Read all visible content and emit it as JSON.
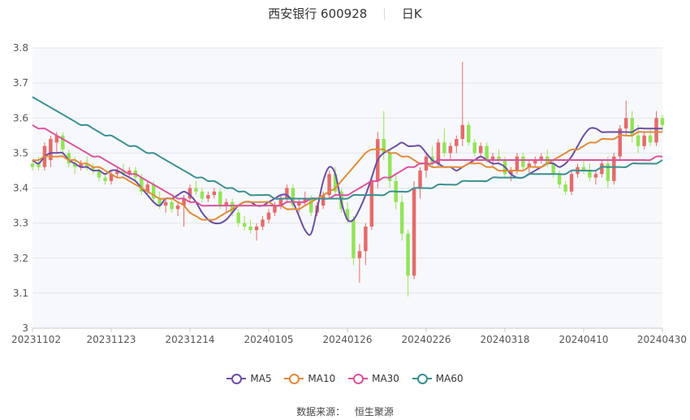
{
  "title": {
    "name": "西安银行 600928",
    "period": "日K"
  },
  "footer": {
    "label": "数据来源：",
    "source": "恒生聚源"
  },
  "chart_data": {
    "type": "candlestick",
    "ylim": [
      3.0,
      3.8
    ],
    "y_ticks": [
      3,
      3.1,
      3.2,
      3.3,
      3.4,
      3.5,
      3.6,
      3.7,
      3.8
    ],
    "x_tick_labels": [
      "20231102",
      "20231123",
      "20231214",
      "20240105",
      "20240126",
      "20240226",
      "20240318",
      "20240410",
      "20240430"
    ],
    "grid": true,
    "legend_position": "bottom",
    "colors": {
      "up": "#e46b6b",
      "down": "#93e35a"
    },
    "candles_ohlc": [
      [
        3.47,
        3.48,
        3.45,
        3.46
      ],
      [
        3.47,
        3.49,
        3.45,
        3.46
      ],
      [
        3.46,
        3.53,
        3.45,
        3.52
      ],
      [
        3.48,
        3.55,
        3.46,
        3.54
      ],
      [
        3.53,
        3.56,
        3.5,
        3.55
      ],
      [
        3.55,
        3.56,
        3.49,
        3.51
      ],
      [
        3.5,
        3.51,
        3.46,
        3.47
      ],
      [
        3.47,
        3.49,
        3.44,
        3.46
      ],
      [
        3.46,
        3.48,
        3.45,
        3.47
      ],
      [
        3.47,
        3.49,
        3.45,
        3.46
      ],
      [
        3.46,
        3.47,
        3.44,
        3.45
      ],
      [
        3.45,
        3.46,
        3.42,
        3.43
      ],
      [
        3.43,
        3.44,
        3.41,
        3.42
      ],
      [
        3.42,
        3.45,
        3.41,
        3.44
      ],
      [
        3.44,
        3.46,
        3.43,
        3.45
      ],
      [
        3.45,
        3.47,
        3.43,
        3.44
      ],
      [
        3.44,
        3.46,
        3.43,
        3.45
      ],
      [
        3.45,
        3.46,
        3.42,
        3.43
      ],
      [
        3.43,
        3.44,
        3.38,
        3.39
      ],
      [
        3.39,
        3.42,
        3.38,
        3.41
      ],
      [
        3.41,
        3.42,
        3.36,
        3.37
      ],
      [
        3.37,
        3.39,
        3.34,
        3.35
      ],
      [
        3.35,
        3.37,
        3.33,
        3.36
      ],
      [
        3.36,
        3.37,
        3.33,
        3.34
      ],
      [
        3.34,
        3.36,
        3.32,
        3.35
      ],
      [
        3.35,
        3.38,
        3.29,
        3.37
      ],
      [
        3.37,
        3.41,
        3.36,
        3.4
      ],
      [
        3.4,
        3.42,
        3.38,
        3.39
      ],
      [
        3.39,
        3.4,
        3.36,
        3.37
      ],
      [
        3.37,
        3.39,
        3.36,
        3.38
      ],
      [
        3.38,
        3.4,
        3.37,
        3.39
      ],
      [
        3.39,
        3.4,
        3.34,
        3.35
      ],
      [
        3.35,
        3.37,
        3.33,
        3.36
      ],
      [
        3.36,
        3.37,
        3.32,
        3.33
      ],
      [
        3.33,
        3.34,
        3.29,
        3.3
      ],
      [
        3.3,
        3.32,
        3.28,
        3.29
      ],
      [
        3.29,
        3.31,
        3.27,
        3.28
      ],
      [
        3.28,
        3.3,
        3.25,
        3.29
      ],
      [
        3.29,
        3.32,
        3.28,
        3.31
      ],
      [
        3.31,
        3.34,
        3.3,
        3.33
      ],
      [
        3.33,
        3.36,
        3.32,
        3.35
      ],
      [
        3.35,
        3.38,
        3.34,
        3.37
      ],
      [
        3.37,
        3.41,
        3.36,
        3.4
      ],
      [
        3.4,
        3.41,
        3.34,
        3.35
      ],
      [
        3.35,
        3.37,
        3.33,
        3.36
      ],
      [
        3.36,
        3.39,
        3.35,
        3.37
      ],
      [
        3.37,
        3.38,
        3.32,
        3.33
      ],
      [
        3.33,
        3.36,
        3.32,
        3.35
      ],
      [
        3.35,
        3.39,
        3.34,
        3.38
      ],
      [
        3.38,
        3.45,
        3.37,
        3.44
      ],
      [
        3.44,
        3.46,
        3.38,
        3.39
      ],
      [
        3.39,
        3.4,
        3.33,
        3.34
      ],
      [
        3.34,
        3.36,
        3.3,
        3.31
      ],
      [
        3.31,
        3.32,
        3.18,
        3.2
      ],
      [
        3.2,
        3.24,
        3.13,
        3.22
      ],
      [
        3.22,
        3.3,
        3.18,
        3.29
      ],
      [
        3.29,
        3.43,
        3.28,
        3.42
      ],
      [
        3.42,
        3.56,
        3.4,
        3.54
      ],
      [
        3.54,
        3.62,
        3.48,
        3.5
      ],
      [
        3.5,
        3.51,
        3.4,
        3.42
      ],
      [
        3.42,
        3.44,
        3.34,
        3.36
      ],
      [
        3.36,
        3.38,
        3.25,
        3.27
      ],
      [
        3.27,
        3.28,
        3.09,
        3.15
      ],
      [
        3.15,
        3.42,
        3.14,
        3.4
      ],
      [
        3.4,
        3.46,
        3.37,
        3.45
      ],
      [
        3.45,
        3.5,
        3.43,
        3.49
      ],
      [
        3.49,
        3.52,
        3.46,
        3.47
      ],
      [
        3.47,
        3.54,
        3.46,
        3.53
      ],
      [
        3.53,
        3.57,
        3.49,
        3.5
      ],
      [
        3.5,
        3.53,
        3.48,
        3.52
      ],
      [
        3.52,
        3.55,
        3.5,
        3.54
      ],
      [
        3.54,
        3.76,
        3.52,
        3.58
      ],
      [
        3.58,
        3.59,
        3.52,
        3.53
      ],
      [
        3.53,
        3.54,
        3.49,
        3.5
      ],
      [
        3.5,
        3.53,
        3.49,
        3.52
      ],
      [
        3.52,
        3.53,
        3.47,
        3.48
      ],
      [
        3.48,
        3.5,
        3.46,
        3.49
      ],
      [
        3.49,
        3.51,
        3.47,
        3.48
      ],
      [
        3.48,
        3.49,
        3.43,
        3.44
      ],
      [
        3.44,
        3.46,
        3.42,
        3.45
      ],
      [
        3.45,
        3.5,
        3.44,
        3.49
      ],
      [
        3.49,
        3.5,
        3.45,
        3.46
      ],
      [
        3.46,
        3.48,
        3.44,
        3.47
      ],
      [
        3.47,
        3.49,
        3.46,
        3.48
      ],
      [
        3.48,
        3.5,
        3.47,
        3.49
      ],
      [
        3.49,
        3.51,
        3.46,
        3.47
      ],
      [
        3.47,
        3.48,
        3.43,
        3.44
      ],
      [
        3.44,
        3.45,
        3.4,
        3.41
      ],
      [
        3.41,
        3.42,
        3.38,
        3.39
      ],
      [
        3.39,
        3.45,
        3.38,
        3.44
      ],
      [
        3.44,
        3.47,
        3.43,
        3.46
      ],
      [
        3.46,
        3.48,
        3.44,
        3.45
      ],
      [
        3.45,
        3.47,
        3.42,
        3.43
      ],
      [
        3.43,
        3.45,
        3.41,
        3.44
      ],
      [
        3.44,
        3.48,
        3.43,
        3.47
      ],
      [
        3.47,
        3.49,
        3.4,
        3.42
      ],
      [
        3.42,
        3.5,
        3.41,
        3.49
      ],
      [
        3.49,
        3.58,
        3.48,
        3.57
      ],
      [
        3.57,
        3.65,
        3.55,
        3.6
      ],
      [
        3.6,
        3.62,
        3.53,
        3.55
      ],
      [
        3.55,
        3.58,
        3.5,
        3.52
      ],
      [
        3.52,
        3.56,
        3.51,
        3.55
      ],
      [
        3.55,
        3.57,
        3.52,
        3.53
      ],
      [
        3.53,
        3.62,
        3.52,
        3.6
      ],
      [
        3.6,
        3.61,
        3.56,
        3.58
      ]
    ],
    "series": [
      {
        "name": "MA5",
        "color": "#6a4ea3",
        "values": [
          3.48,
          3.47,
          3.49,
          3.5,
          3.5,
          3.5,
          3.48,
          3.47,
          3.46,
          3.46,
          3.45,
          3.45,
          3.44,
          3.45,
          3.45,
          3.44,
          3.43,
          3.42,
          3.4,
          3.38,
          3.36,
          3.35,
          3.37,
          3.37,
          3.38,
          3.39,
          3.38,
          3.36,
          3.33,
          3.31,
          3.3,
          3.3,
          3.31,
          3.33,
          3.35,
          3.36,
          3.36,
          3.35,
          3.35,
          3.36,
          3.37,
          3.38,
          3.38,
          3.36,
          3.32,
          3.28,
          3.27,
          3.34,
          3.42,
          3.46,
          3.44,
          3.36,
          3.31,
          3.31,
          3.34,
          3.38,
          3.43,
          3.48,
          3.5,
          3.51,
          3.52,
          3.53,
          3.52,
          3.52,
          3.52,
          3.5,
          3.48,
          3.47,
          3.46,
          3.46,
          3.45,
          3.46,
          3.47,
          3.48,
          3.49,
          3.48,
          3.47,
          3.47,
          3.46,
          3.44,
          3.43,
          3.43,
          3.44,
          3.45,
          3.46,
          3.47,
          3.47,
          3.46,
          3.47,
          3.49,
          3.52,
          3.55,
          3.57,
          3.57,
          3.56,
          3.56,
          3.56,
          3.56,
          3.56,
          3.56,
          3.57,
          3.57,
          3.57,
          3.57,
          3.57
        ]
      },
      {
        "name": "MA10",
        "color": "#e08b3a",
        "values": [
          3.48,
          3.48,
          3.49,
          3.49,
          3.49,
          3.49,
          3.48,
          3.48,
          3.47,
          3.47,
          3.46,
          3.46,
          3.45,
          3.44,
          3.43,
          3.43,
          3.42,
          3.41,
          3.4,
          3.39,
          3.38,
          3.37,
          3.37,
          3.37,
          3.36,
          3.35,
          3.33,
          3.32,
          3.31,
          3.31,
          3.31,
          3.32,
          3.33,
          3.34,
          3.35,
          3.36,
          3.36,
          3.36,
          3.36,
          3.36,
          3.35,
          3.35,
          3.34,
          3.34,
          3.34,
          3.35,
          3.36,
          3.37,
          3.38,
          3.39,
          3.4,
          3.42,
          3.44,
          3.46,
          3.48,
          3.5,
          3.51,
          3.51,
          3.51,
          3.5,
          3.5,
          3.49,
          3.49,
          3.48,
          3.47,
          3.47,
          3.46,
          3.46,
          3.46,
          3.46,
          3.46,
          3.46,
          3.47,
          3.47,
          3.47,
          3.46,
          3.46,
          3.45,
          3.45,
          3.45,
          3.45,
          3.45,
          3.46,
          3.46,
          3.46,
          3.47,
          3.48,
          3.49,
          3.5,
          3.51,
          3.51,
          3.52,
          3.53,
          3.53,
          3.54,
          3.54,
          3.54,
          3.55,
          3.55,
          3.55,
          3.56,
          3.56,
          3.56,
          3.56,
          3.56
        ]
      },
      {
        "name": "MA30",
        "color": "#d9539b",
        "values": [
          3.58,
          3.57,
          3.57,
          3.56,
          3.55,
          3.54,
          3.53,
          3.52,
          3.51,
          3.5,
          3.49,
          3.49,
          3.48,
          3.47,
          3.46,
          3.45,
          3.44,
          3.44,
          3.43,
          3.42,
          3.41,
          3.4,
          3.39,
          3.38,
          3.37,
          3.37,
          3.36,
          3.36,
          3.35,
          3.35,
          3.35,
          3.35,
          3.35,
          3.35,
          3.35,
          3.35,
          3.35,
          3.35,
          3.35,
          3.35,
          3.35,
          3.35,
          3.36,
          3.36,
          3.36,
          3.36,
          3.37,
          3.37,
          3.37,
          3.37,
          3.38,
          3.38,
          3.38,
          3.39,
          3.4,
          3.41,
          3.42,
          3.42,
          3.43,
          3.43,
          3.44,
          3.45,
          3.46,
          3.46,
          3.47,
          3.47,
          3.47,
          3.48,
          3.48,
          3.48,
          3.48,
          3.48,
          3.48,
          3.48,
          3.48,
          3.48,
          3.48,
          3.48,
          3.48,
          3.48,
          3.48,
          3.48,
          3.48,
          3.48,
          3.48,
          3.48,
          3.48,
          3.48,
          3.48,
          3.48,
          3.48,
          3.48,
          3.48,
          3.48,
          3.48,
          3.48,
          3.48,
          3.48,
          3.48,
          3.48,
          3.48,
          3.48,
          3.48,
          3.49,
          3.49
        ]
      },
      {
        "name": "MA60",
        "color": "#3a8f8f",
        "values": [
          3.66,
          3.65,
          3.64,
          3.63,
          3.62,
          3.61,
          3.6,
          3.59,
          3.58,
          3.58,
          3.57,
          3.56,
          3.55,
          3.55,
          3.54,
          3.53,
          3.52,
          3.52,
          3.51,
          3.5,
          3.5,
          3.49,
          3.48,
          3.47,
          3.46,
          3.45,
          3.44,
          3.43,
          3.43,
          3.42,
          3.42,
          3.41,
          3.4,
          3.4,
          3.39,
          3.39,
          3.38,
          3.38,
          3.38,
          3.38,
          3.37,
          3.37,
          3.37,
          3.37,
          3.37,
          3.37,
          3.37,
          3.37,
          3.37,
          3.37,
          3.37,
          3.37,
          3.37,
          3.38,
          3.38,
          3.38,
          3.38,
          3.38,
          3.38,
          3.39,
          3.39,
          3.39,
          3.39,
          3.4,
          3.4,
          3.4,
          3.4,
          3.41,
          3.41,
          3.41,
          3.41,
          3.42,
          3.42,
          3.42,
          3.42,
          3.42,
          3.43,
          3.43,
          3.43,
          3.43,
          3.43,
          3.43,
          3.44,
          3.44,
          3.44,
          3.44,
          3.44,
          3.44,
          3.44,
          3.45,
          3.45,
          3.45,
          3.45,
          3.45,
          3.46,
          3.46,
          3.46,
          3.46,
          3.46,
          3.47,
          3.47,
          3.47,
          3.47,
          3.47,
          3.48
        ]
      }
    ]
  }
}
